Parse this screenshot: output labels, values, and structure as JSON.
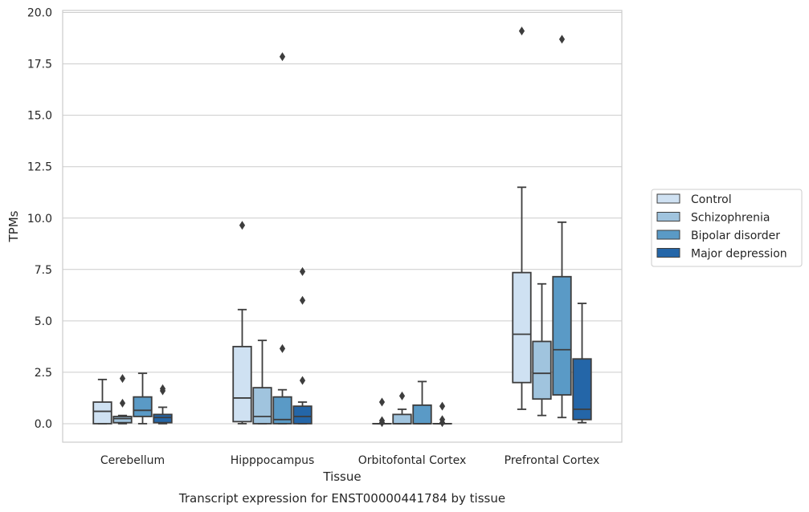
{
  "chart_data": {
    "type": "box",
    "caption": "Transcript expression for ENST00000441784 by tissue",
    "xlabel": "Tissue",
    "ylabel": "TPMs",
    "ylim": [
      -0.9,
      20.1
    ],
    "yticks": [
      "0.0",
      "2.5",
      "5.0",
      "7.5",
      "10.0",
      "12.5",
      "15.0",
      "17.5",
      "20.0"
    ],
    "categories": [
      "Cerebellum",
      "Hipppocampus",
      "Orbitofontal Cortex",
      "Prefrontal Cortex"
    ],
    "grid": true,
    "legend_position": "right",
    "series": [
      {
        "name": "Control",
        "color": "#cfe1f2",
        "boxes": [
          {
            "whisker_low": 0.0,
            "q1": 0.0,
            "median": 0.6,
            "q3": 1.05,
            "whisker_high": 2.15,
            "outliers": []
          },
          {
            "whisker_low": 0.0,
            "q1": 0.1,
            "median": 1.25,
            "q3": 3.75,
            "whisker_high": 5.55,
            "outliers": [
              9.65
            ]
          },
          {
            "whisker_low": 0.0,
            "q1": 0.0,
            "median": 0.0,
            "q3": 0.0,
            "whisker_high": 0.0,
            "outliers": [
              0.05,
              0.15,
              1.05
            ]
          },
          {
            "whisker_low": 0.7,
            "q1": 2.0,
            "median": 4.35,
            "q3": 7.35,
            "whisker_high": 11.5,
            "outliers": [
              19.1
            ]
          }
        ]
      },
      {
        "name": "Schizophrenia",
        "color": "#a0c4de",
        "boxes": [
          {
            "whisker_low": 0.0,
            "q1": 0.05,
            "median": 0.25,
            "q3": 0.35,
            "whisker_high": 0.4,
            "outliers": [
              1.0,
              2.2
            ]
          },
          {
            "whisker_low": 0.0,
            "q1": 0.0,
            "median": 0.35,
            "q3": 1.75,
            "whisker_high": 4.05,
            "outliers": []
          },
          {
            "whisker_low": 0.0,
            "q1": 0.0,
            "median": 0.0,
            "q3": 0.45,
            "whisker_high": 0.7,
            "outliers": [
              1.35
            ]
          },
          {
            "whisker_low": 0.4,
            "q1": 1.2,
            "median": 2.45,
            "q3": 4.0,
            "whisker_high": 6.8,
            "outliers": []
          }
        ]
      },
      {
        "name": "Bipolar disorder",
        "color": "#5a9ac6",
        "boxes": [
          {
            "whisker_low": 0.0,
            "q1": 0.35,
            "median": 0.65,
            "q3": 1.3,
            "whisker_high": 2.45,
            "outliers": []
          },
          {
            "whisker_low": 0.0,
            "q1": 0.0,
            "median": 0.2,
            "q3": 1.3,
            "whisker_high": 1.65,
            "outliers": [
              3.65,
              17.85
            ]
          },
          {
            "whisker_low": 0.0,
            "q1": 0.0,
            "median": 0.0,
            "q3": 0.9,
            "whisker_high": 2.05,
            "outliers": []
          },
          {
            "whisker_low": 0.3,
            "q1": 1.4,
            "median": 3.6,
            "q3": 7.15,
            "whisker_high": 9.8,
            "outliers": [
              18.7
            ]
          }
        ]
      },
      {
        "name": "Major depression",
        "color": "#2466a8",
        "boxes": [
          {
            "whisker_low": 0.0,
            "q1": 0.05,
            "median": 0.3,
            "q3": 0.45,
            "whisker_high": 0.8,
            "outliers": [
              1.6,
              1.7
            ]
          },
          {
            "whisker_low": 0.0,
            "q1": 0.0,
            "median": 0.35,
            "q3": 0.85,
            "whisker_high": 1.05,
            "outliers": [
              2.1,
              6.0,
              7.4
            ]
          },
          {
            "whisker_low": 0.0,
            "q1": 0.0,
            "median": 0.0,
            "q3": 0.0,
            "whisker_high": 0.0,
            "outliers": [
              0.05,
              0.2,
              0.85
            ]
          },
          {
            "whisker_low": 0.05,
            "q1": 0.2,
            "median": 0.7,
            "q3": 3.15,
            "whisker_high": 5.85,
            "outliers": []
          }
        ]
      }
    ]
  }
}
